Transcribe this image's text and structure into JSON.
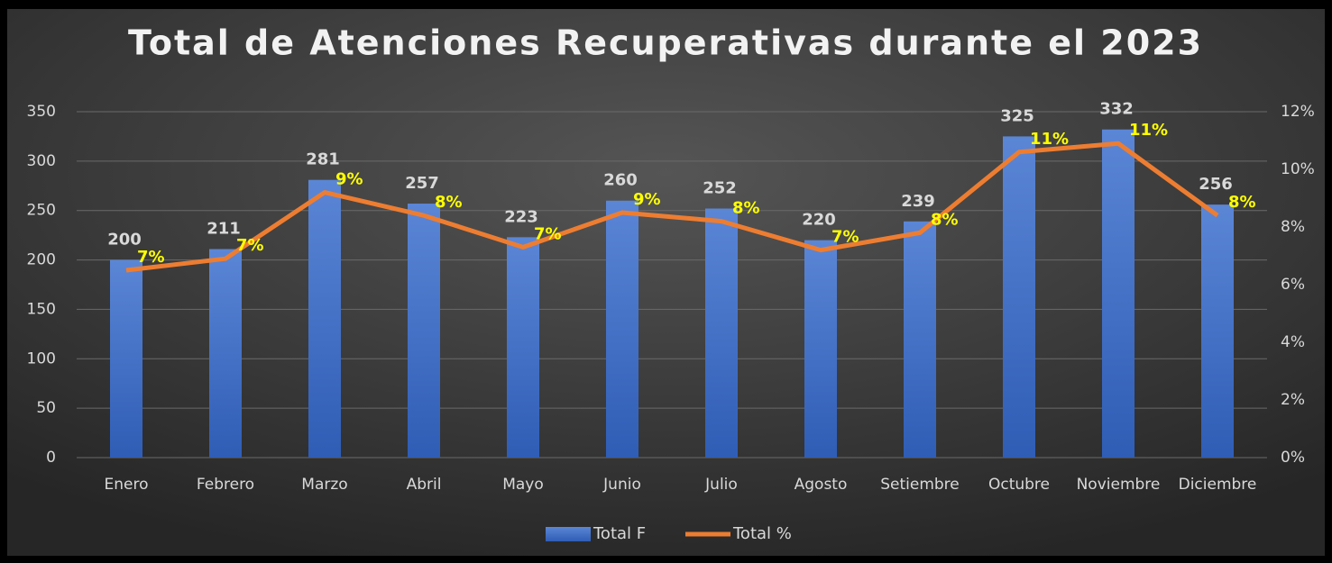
{
  "chart_data": {
    "type": "bar-line",
    "title": "Total de Atenciones Recuperativas durante el 2023",
    "categories": [
      "Enero",
      "Febrero",
      "Marzo",
      "Abril",
      "Mayo",
      "Junio",
      "Julio",
      "Agosto",
      "Setiembre",
      "Octubre",
      "Noviembre",
      "Diciembre"
    ],
    "series": [
      {
        "name": "Total F",
        "type": "bar",
        "color": "#4472c4",
        "values": [
          200,
          211,
          281,
          257,
          223,
          260,
          252,
          220,
          239,
          325,
          332,
          256
        ]
      },
      {
        "name": "Total %",
        "type": "line",
        "axis": "y2",
        "color": "#ed7d31",
        "values": [
          6.5,
          6.9,
          9.2,
          8.4,
          7.3,
          8.5,
          8.2,
          7.2,
          7.8,
          10.6,
          10.9,
          8.4
        ],
        "value_labels": [
          "7%",
          "7%",
          "9%",
          "8%",
          "7%",
          "9%",
          "8%",
          "7%",
          "8%",
          "11%",
          "11%",
          "8%"
        ]
      }
    ],
    "ylim": [
      0,
      350
    ],
    "yticks": [
      0,
      50,
      100,
      150,
      200,
      250,
      300,
      350
    ],
    "y2lim": [
      0,
      12
    ],
    "y2ticks": [
      {
        "value": 0,
        "label": "0%"
      },
      {
        "value": 2,
        "label": "2%"
      },
      {
        "value": 4,
        "label": "4%"
      },
      {
        "value": 6,
        "label": "6%"
      },
      {
        "value": 8,
        "label": "8%"
      },
      {
        "value": 10,
        "label": "10%"
      },
      {
        "value": 12,
        "label": "12%"
      }
    ],
    "grid": true,
    "legend": "bottom"
  }
}
